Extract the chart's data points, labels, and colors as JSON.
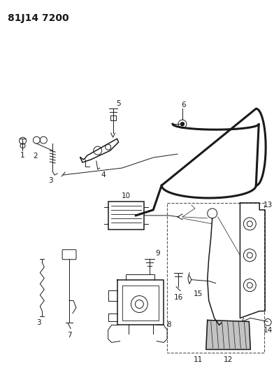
{
  "title": "81J14 7200",
  "bg_color": "#ffffff",
  "line_color": "#1a1a1a",
  "title_fontsize": 10,
  "label_fontsize": 7.5
}
